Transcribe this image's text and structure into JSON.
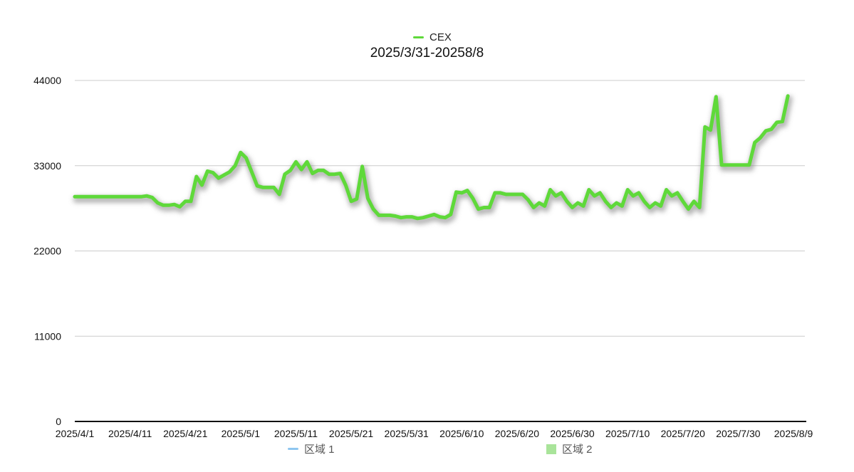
{
  "chart_data": {
    "type": "line",
    "title": "2025/3/31-20258/8",
    "xlabel": "",
    "ylabel": "",
    "ylim": [
      0,
      44000
    ],
    "yticks": [
      0,
      11000,
      22000,
      33000,
      44000
    ],
    "yticks_text": [
      "0",
      "11000",
      "22000",
      "33000",
      "44000"
    ],
    "xticks": [
      "2025/4/1",
      "2025/4/11",
      "2025/4/21",
      "2025/5/1",
      "2025/5/11",
      "2025/5/21",
      "2025/5/31",
      "2025/6/10",
      "2025/6/20",
      "2025/6/30",
      "2025/7/10",
      "2025/7/20",
      "2025/7/30",
      "2025/8/9"
    ],
    "grid": true,
    "legend_position": "top-center",
    "series": [
      {
        "name": "CEX",
        "color": "#5fd93a",
        "points": [
          [
            "2025/4/1",
            29000
          ],
          [
            "2025/4/2",
            29000
          ],
          [
            "2025/4/3",
            29000
          ],
          [
            "2025/4/4",
            29000
          ],
          [
            "2025/4/5",
            29000
          ],
          [
            "2025/4/6",
            29000
          ],
          [
            "2025/4/7",
            29000
          ],
          [
            "2025/4/8",
            29000
          ],
          [
            "2025/4/9",
            29000
          ],
          [
            "2025/4/10",
            29000
          ],
          [
            "2025/4/11",
            29000
          ],
          [
            "2025/4/12",
            29000
          ],
          [
            "2025/4/13",
            29000
          ],
          [
            "2025/4/14",
            29100
          ],
          [
            "2025/4/15",
            28900
          ],
          [
            "2025/4/16",
            28200
          ],
          [
            "2025/4/17",
            27900
          ],
          [
            "2025/4/18",
            27900
          ],
          [
            "2025/4/19",
            28000
          ],
          [
            "2025/4/20",
            27700
          ],
          [
            "2025/4/21",
            28400
          ],
          [
            "2025/4/22",
            28400
          ],
          [
            "2025/4/23",
            31600
          ],
          [
            "2025/4/24",
            30500
          ],
          [
            "2025/4/25",
            32300
          ],
          [
            "2025/4/26",
            32100
          ],
          [
            "2025/4/27",
            31400
          ],
          [
            "2025/4/28",
            31800
          ],
          [
            "2025/4/29",
            32200
          ],
          [
            "2025/4/30",
            33000
          ],
          [
            "2025/5/1",
            34700
          ],
          [
            "2025/5/2",
            34000
          ],
          [
            "2025/5/3",
            32200
          ],
          [
            "2025/5/4",
            30400
          ],
          [
            "2025/5/5",
            30200
          ],
          [
            "2025/5/6",
            30200
          ],
          [
            "2025/5/7",
            30200
          ],
          [
            "2025/5/8",
            29300
          ],
          [
            "2025/5/9",
            31900
          ],
          [
            "2025/5/10",
            32400
          ],
          [
            "2025/5/11",
            33500
          ],
          [
            "2025/5/12",
            32500
          ],
          [
            "2025/5/13",
            33500
          ],
          [
            "2025/5/14",
            32000
          ],
          [
            "2025/5/15",
            32400
          ],
          [
            "2025/5/16",
            32400
          ],
          [
            "2025/5/17",
            31900
          ],
          [
            "2025/5/18",
            31900
          ],
          [
            "2025/5/19",
            32000
          ],
          [
            "2025/5/20",
            30500
          ],
          [
            "2025/5/21",
            28400
          ],
          [
            "2025/5/22",
            28700
          ],
          [
            "2025/5/23",
            32900
          ],
          [
            "2025/5/24",
            28800
          ],
          [
            "2025/5/25",
            27400
          ],
          [
            "2025/5/26",
            26600
          ],
          [
            "2025/5/27",
            26600
          ],
          [
            "2025/5/28",
            26600
          ],
          [
            "2025/5/29",
            26500
          ],
          [
            "2025/5/30",
            26300
          ],
          [
            "2025/5/31",
            26400
          ],
          [
            "2025/6/1",
            26400
          ],
          [
            "2025/6/2",
            26200
          ],
          [
            "2025/6/3",
            26300
          ],
          [
            "2025/6/4",
            26500
          ],
          [
            "2025/6/5",
            26700
          ],
          [
            "2025/6/6",
            26400
          ],
          [
            "2025/6/7",
            26300
          ],
          [
            "2025/6/8",
            26700
          ],
          [
            "2025/6/9",
            29600
          ],
          [
            "2025/6/10",
            29500
          ],
          [
            "2025/6/11",
            29800
          ],
          [
            "2025/6/12",
            28800
          ],
          [
            "2025/6/13",
            27400
          ],
          [
            "2025/6/14",
            27600
          ],
          [
            "2025/6/15",
            27600
          ],
          [
            "2025/6/16",
            29500
          ],
          [
            "2025/6/17",
            29500
          ],
          [
            "2025/6/18",
            29300
          ],
          [
            "2025/6/19",
            29300
          ],
          [
            "2025/6/20",
            29300
          ],
          [
            "2025/6/21",
            29300
          ],
          [
            "2025/6/22",
            28600
          ],
          [
            "2025/6/23",
            27600
          ],
          [
            "2025/6/24",
            28200
          ],
          [
            "2025/6/25",
            27800
          ],
          [
            "2025/6/26",
            29900
          ],
          [
            "2025/6/27",
            29100
          ],
          [
            "2025/6/28",
            29500
          ],
          [
            "2025/6/29",
            28400
          ],
          [
            "2025/6/30",
            27600
          ],
          [
            "2025/7/1",
            28200
          ],
          [
            "2025/7/2",
            27800
          ],
          [
            "2025/7/3",
            29900
          ],
          [
            "2025/7/4",
            29100
          ],
          [
            "2025/7/5",
            29500
          ],
          [
            "2025/7/6",
            28400
          ],
          [
            "2025/7/7",
            27600
          ],
          [
            "2025/7/8",
            28200
          ],
          [
            "2025/7/9",
            27800
          ],
          [
            "2025/7/10",
            29900
          ],
          [
            "2025/7/11",
            29100
          ],
          [
            "2025/7/12",
            29500
          ],
          [
            "2025/7/13",
            28400
          ],
          [
            "2025/7/14",
            27600
          ],
          [
            "2025/7/15",
            28200
          ],
          [
            "2025/7/16",
            27800
          ],
          [
            "2025/7/17",
            29900
          ],
          [
            "2025/7/18",
            29100
          ],
          [
            "2025/7/19",
            29500
          ],
          [
            "2025/7/20",
            28400
          ],
          [
            "2025/7/21",
            27400
          ],
          [
            "2025/7/22",
            28400
          ],
          [
            "2025/7/23",
            27600
          ],
          [
            "2025/7/24",
            38000
          ],
          [
            "2025/7/25",
            37600
          ],
          [
            "2025/7/26",
            41900
          ],
          [
            "2025/7/27",
            33100
          ],
          [
            "2025/7/28",
            33100
          ],
          [
            "2025/7/29",
            33100
          ],
          [
            "2025/7/30",
            33100
          ],
          [
            "2025/7/31",
            33100
          ],
          [
            "2025/8/1",
            33100
          ],
          [
            "2025/8/2",
            36000
          ],
          [
            "2025/8/3",
            36600
          ],
          [
            "2025/8/4",
            37500
          ],
          [
            "2025/8/5",
            37700
          ],
          [
            "2025/8/6",
            38600
          ],
          [
            "2025/8/7",
            38700
          ],
          [
            "2025/8/8",
            42000
          ]
        ]
      }
    ],
    "extra_legend": [
      {
        "name": "区域 1",
        "color": "#8ec6f0",
        "kind": "line"
      },
      {
        "name": "区域 2",
        "color": "#a9e49a",
        "kind": "box"
      }
    ]
  }
}
